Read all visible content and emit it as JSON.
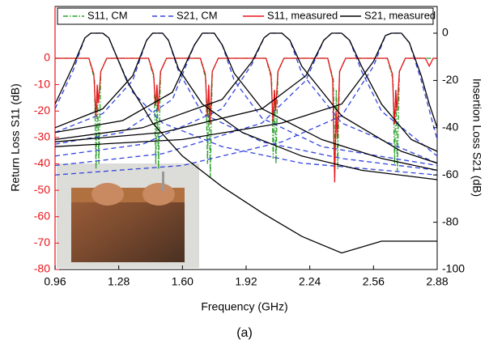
{
  "chart_data": {
    "type": "line",
    "caption": "(a)",
    "x_label": "Frequency (GHz)",
    "y_label": "Return Loss S11 (dB)",
    "y2_label": "Insertion Loss S21 (dB)",
    "xlim": [
      0.96,
      2.88
    ],
    "xticks": [
      0.96,
      1.28,
      {
        "value": 1.6,
        "label": "1.60"
      },
      1.92,
      2.24,
      2.56,
      2.88
    ],
    "ylim": [
      -80,
      19.6
    ],
    "yticks": [
      0,
      -10,
      -20,
      -30,
      -40,
      -50,
      -60,
      -70,
      -80
    ],
    "y2lim": [
      -100,
      11.3
    ],
    "y2ticks": [
      0,
      -20,
      -40,
      -60,
      -80,
      -100
    ],
    "series": [
      {
        "name": "S11, CM",
        "color": "#2ca02c",
        "dash": "6 2 1.5 2",
        "axis": "y",
        "lines": [
          {
            "x": [
              0.96,
              1.13,
              1.158,
              1.166,
              1.173,
              1.18,
              1.19,
              1.22,
              1.43,
              1.458,
              1.466,
              1.473,
              1.48,
              1.49,
              1.52,
              1.69,
              1.718,
              1.726,
              1.733,
              1.74,
              1.75,
              1.78,
              2.02,
              2.048,
              2.056,
              2.063,
              2.07,
              2.08,
              2.11,
              2.33,
              2.358,
              2.366,
              2.373,
              2.38,
              2.39,
              2.42,
              2.63,
              2.658,
              2.666,
              2.673,
              2.68,
              2.69,
              2.72,
              2.88
            ],
            "values": [
              0,
              0,
              -8,
              -42,
              -12,
              -40,
              -5,
              0,
              0,
              -8,
              -40,
              -12,
              -42,
              -5,
              0,
              0,
              -8,
              -40,
              -12,
              -45,
              -5,
              0,
              0,
              -8,
              -38,
              -12,
              -40,
              -5,
              0,
              0,
              -8,
              -40,
              -12,
              -42,
              -5,
              0,
              0,
              -8,
              -40,
              -12,
              -43,
              -5,
              0,
              0
            ]
          }
        ]
      },
      {
        "name": "S21, CM",
        "color": "#3344dd",
        "dash": "6 4",
        "axis": "y2",
        "lines": [
          {
            "x": [
              0.96,
              1.05,
              1.11,
              1.14,
              1.2,
              1.23,
              1.27,
              1.35,
              1.5,
              1.8,
              2.2,
              2.88
            ],
            "values": [
              -32,
              -16,
              -2,
              0,
              0,
              -2,
              -10,
              -25,
              -38,
              -48,
              -55,
              -60
            ]
          },
          {
            "x": [
              0.96,
              1.2,
              1.35,
              1.42,
              1.45,
              1.5,
              1.53,
              1.58,
              1.7,
              2.0,
              2.4,
              2.88
            ],
            "values": [
              -42,
              -34,
              -20,
              -3,
              0,
              0,
              -3,
              -16,
              -34,
              -46,
              -53,
              -58
            ]
          },
          {
            "x": [
              0.96,
              1.3,
              1.55,
              1.66,
              1.7,
              1.76,
              1.8,
              1.86,
              2.0,
              2.3,
              2.88
            ],
            "values": [
              -47,
              -42,
              -28,
              -5,
              0,
              0,
              -5,
              -20,
              -36,
              -48,
              -56
            ]
          },
          {
            "x": [
              0.96,
              1.4,
              1.8,
              1.95,
              2.01,
              2.04,
              2.1,
              2.14,
              2.2,
              2.4,
              2.88
            ],
            "values": [
              -52,
              -47,
              -32,
              -13,
              -2,
              0,
              0,
              -3,
              -17,
              -38,
              -55
            ]
          },
          {
            "x": [
              0.96,
              1.5,
              2.0,
              2.22,
              2.31,
              2.35,
              2.4,
              2.44,
              2.5,
              2.6,
              2.88
            ],
            "values": [
              -56,
              -51,
              -38,
              -20,
              -3,
              0,
              0,
              -3,
              -16,
              -33,
              -52
            ]
          },
          {
            "x": [
              0.96,
              1.6,
              2.1,
              2.4,
              2.56,
              2.62,
              2.65,
              2.7,
              2.74,
              2.8,
              2.88
            ],
            "values": [
              -60,
              -56,
              -46,
              -35,
              -14,
              -1,
              0,
              0,
              -4,
              -20,
              -45
            ]
          }
        ]
      },
      {
        "name": "S11, measured",
        "color": "#e8141b",
        "dash": "",
        "axis": "y",
        "lines": [
          {
            "x": [
              0.96,
              1.13,
              1.155,
              1.165,
              1.172,
              1.178,
              1.19,
              1.22,
              1.43,
              1.455,
              1.465,
              1.472,
              1.478,
              1.49,
              1.52,
              1.69,
              1.715,
              1.725,
              1.732,
              1.738,
              1.75,
              1.78,
              2.02,
              2.045,
              2.055,
              2.062,
              2.068,
              2.08,
              2.11,
              2.33,
              2.355,
              2.365,
              2.372,
              2.378,
              2.39,
              2.42,
              2.63,
              2.655,
              2.665,
              2.672,
              2.678,
              2.69,
              2.72,
              2.82,
              2.84,
              2.86,
              2.88
            ],
            "values": [
              0,
              0,
              -6,
              -22,
              -10,
              -17,
              -5,
              0,
              0,
              -6,
              -18,
              -10,
              -20,
              -5,
              0,
              0,
              -6,
              -22,
              -10,
              -25,
              -5,
              0,
              0,
              -6,
              -24,
              -12,
              -20,
              -5,
              0,
              0,
              -8,
              -47,
              -20,
              -30,
              -5,
              0,
              0,
              -6,
              -25,
              -12,
              -20,
              -5,
              0,
              0,
              -3,
              0,
              0
            ]
          }
        ]
      },
      {
        "name": "S21, measured",
        "color": "#000000",
        "dash": "",
        "axis": "y2",
        "lines": [
          {
            "x": [
              0.96,
              1.05,
              1.11,
              1.14,
              1.2,
              1.23,
              1.26,
              1.32,
              1.45,
              1.6,
              1.8,
              2.0,
              2.2,
              2.4,
              2.6,
              2.88
            ],
            "values": [
              -30,
              -14,
              -2,
              0,
              0,
              -2,
              -8,
              -20,
              -38,
              -52,
              -65,
              -76,
              -86,
              -93,
              -88,
              -88
            ]
          },
          {
            "x": [
              0.96,
              1.2,
              1.35,
              1.42,
              1.45,
              1.5,
              1.53,
              1.58,
              1.7,
              1.9,
              2.2,
              2.5,
              2.88
            ],
            "values": [
              -40,
              -32,
              -18,
              -3,
              0,
              0,
              -3,
              -15,
              -30,
              -42,
              -52,
              -58,
              -62
            ]
          },
          {
            "x": [
              0.96,
              1.3,
              1.55,
              1.66,
              1.7,
              1.76,
              1.8,
              1.86,
              2.0,
              2.3,
              2.6,
              2.88
            ],
            "values": [
              -42,
              -37,
              -25,
              -5,
              0,
              0,
              -5,
              -17,
              -32,
              -45,
              -53,
              -58
            ]
          },
          {
            "x": [
              0.96,
              1.4,
              1.8,
              1.95,
              2.01,
              2.04,
              2.1,
              2.14,
              2.2,
              2.4,
              2.7,
              2.88
            ],
            "values": [
              -45,
              -40,
              -28,
              -12,
              -2,
              0,
              0,
              -3,
              -14,
              -35,
              -50,
              -55
            ]
          },
          {
            "x": [
              0.96,
              1.5,
              2.0,
              2.22,
              2.31,
              2.35,
              2.4,
              2.44,
              2.5,
              2.6,
              2.75,
              2.88
            ],
            "values": [
              -46,
              -42,
              -32,
              -18,
              -3,
              0,
              0,
              -3,
              -14,
              -30,
              -45,
              -50
            ]
          },
          {
            "x": [
              0.96,
              1.6,
              2.1,
              2.4,
              2.56,
              2.62,
              2.65,
              2.7,
              2.74,
              2.8,
              2.84,
              2.88
            ],
            "values": [
              -48,
              -45,
              -38,
              -30,
              -12,
              -1,
              0,
              0,
              -4,
              -18,
              -30,
              -40
            ]
          }
        ]
      }
    ]
  }
}
